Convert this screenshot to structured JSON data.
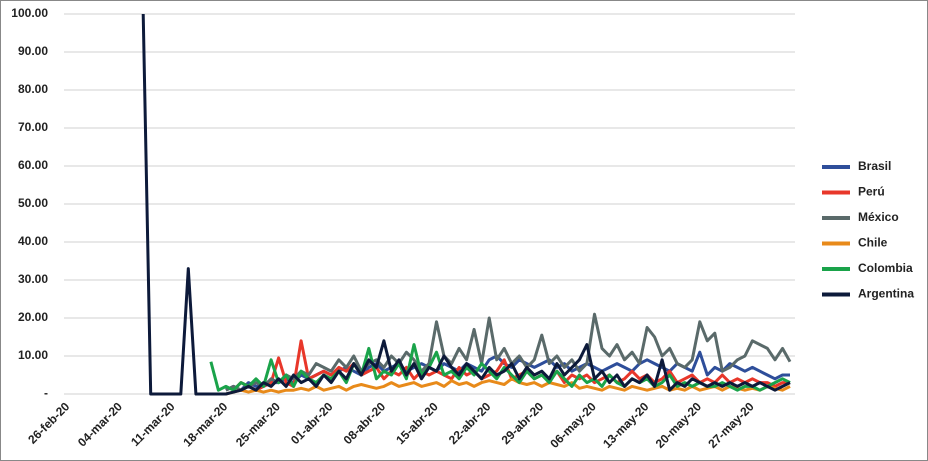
{
  "chart_data": {
    "type": "line",
    "categories": [
      "26-feb-20",
      null,
      null,
      null,
      null,
      null,
      null,
      "04-mar-20",
      null,
      null,
      null,
      null,
      null,
      null,
      "11-mar-20",
      null,
      null,
      null,
      null,
      null,
      null,
      "18-mar-20",
      null,
      null,
      null,
      null,
      null,
      null,
      "25-mar-20",
      null,
      null,
      null,
      null,
      null,
      null,
      "01-abr-20",
      null,
      null,
      null,
      null,
      null,
      null,
      "08-abr-20",
      null,
      null,
      null,
      null,
      null,
      null,
      "15-abr-20",
      null,
      null,
      null,
      null,
      null,
      null,
      "22-abr-20",
      null,
      null,
      null,
      null,
      null,
      null,
      "29-abr-20",
      null,
      null,
      null,
      null,
      null,
      null,
      "06-may-20",
      null,
      null,
      null,
      null,
      null,
      null,
      "13-may-20",
      null,
      null,
      null,
      null,
      null,
      null,
      "20-may-20",
      null,
      null,
      null,
      null,
      null,
      null,
      "27-may-20",
      null,
      null,
      null,
      null,
      null
    ],
    "series": [
      {
        "name": "Brasil",
        "color": "#2e4e9a",
        "values": [
          null,
          null,
          null,
          null,
          null,
          null,
          null,
          null,
          null,
          null,
          null,
          null,
          null,
          null,
          null,
          null,
          null,
          null,
          null,
          null,
          null,
          1,
          2,
          1,
          3,
          2,
          2,
          3,
          3,
          4,
          3,
          5,
          4,
          5,
          6,
          5,
          6,
          7,
          6,
          5,
          7,
          8,
          6,
          7,
          8,
          6,
          7,
          8,
          7,
          6,
          8,
          7,
          6,
          8,
          7,
          6,
          9,
          10,
          8,
          7,
          9,
          8,
          7,
          8,
          9,
          7,
          8,
          6,
          7,
          8,
          7,
          6,
          7,
          8,
          7,
          6,
          8,
          9,
          8,
          7,
          6,
          8,
          7,
          6,
          11,
          5,
          7,
          6,
          8,
          7,
          6,
          7,
          6,
          5,
          4,
          5,
          5
        ]
      },
      {
        "name": "Perú",
        "color": "#e8372a",
        "values": [
          null,
          null,
          null,
          null,
          null,
          null,
          null,
          null,
          null,
          null,
          null,
          null,
          null,
          null,
          null,
          null,
          null,
          null,
          null,
          null,
          null,
          null,
          1,
          3,
          2,
          1,
          2,
          3,
          9.5,
          3,
          2,
          14,
          4,
          5,
          6,
          5,
          7,
          6,
          8,
          5,
          6,
          7,
          4,
          6,
          5,
          7,
          4,
          6,
          5,
          6,
          5,
          4,
          7,
          5,
          6,
          4,
          5,
          6,
          9,
          4,
          5,
          6,
          4,
          5,
          4,
          6,
          3,
          5,
          4,
          5,
          3,
          4,
          5,
          3,
          4,
          6,
          4,
          5,
          3,
          4,
          6,
          3,
          4,
          5,
          3,
          4,
          3,
          5,
          3,
          4,
          3,
          4,
          3,
          3,
          2,
          3,
          3
        ]
      },
      {
        "name": "México",
        "color": "#5a6a6a",
        "values": [
          null,
          null,
          null,
          null,
          null,
          null,
          null,
          null,
          null,
          null,
          null,
          null,
          null,
          null,
          null,
          null,
          null,
          null,
          null,
          null,
          null,
          1,
          2,
          1,
          2,
          3,
          2,
          4,
          3,
          5,
          4,
          6,
          5,
          8,
          7,
          6,
          9,
          7,
          10,
          6,
          8,
          9,
          7,
          10,
          8,
          11,
          9,
          6,
          8,
          19,
          10,
          8,
          12,
          9,
          17,
          8,
          20,
          9,
          12,
          8,
          10,
          7,
          9,
          15.5,
          8,
          10,
          7,
          9,
          6,
          8,
          21,
          12,
          10,
          13,
          9,
          11,
          8,
          17.5,
          15,
          10,
          12,
          8,
          7,
          9,
          19,
          14,
          16,
          6,
          7,
          9,
          10,
          14,
          13,
          12,
          9,
          12,
          8.5
        ]
      },
      {
        "name": "Chile",
        "color": "#e88a1a",
        "values": [
          null,
          null,
          null,
          null,
          null,
          null,
          null,
          null,
          null,
          null,
          null,
          null,
          null,
          null,
          null,
          null,
          null,
          null,
          null,
          null,
          null,
          0,
          0.5,
          1,
          0.5,
          1,
          0.5,
          1,
          0.5,
          1,
          1,
          1.5,
          1,
          2,
          1,
          1.5,
          2,
          1,
          2,
          2.5,
          2,
          1.5,
          2,
          3,
          2,
          2.5,
          3,
          2,
          2.5,
          3,
          2,
          3.5,
          2.5,
          3,
          2,
          3,
          3.5,
          3,
          2.5,
          4,
          3,
          2.5,
          3,
          2,
          3,
          2.5,
          2,
          3,
          1.5,
          2,
          1.5,
          1,
          2,
          1.5,
          1,
          2,
          1.5,
          1,
          1.5,
          2,
          1,
          1.5,
          1,
          2,
          1,
          1.5,
          2,
          1,
          2,
          1.5,
          1,
          1.5,
          1,
          2,
          1.5,
          1,
          2
        ]
      },
      {
        "name": "Colombia",
        "color": "#1aa34a",
        "values": [
          null,
          null,
          null,
          null,
          null,
          null,
          null,
          null,
          null,
          null,
          null,
          null,
          null,
          null,
          null,
          null,
          null,
          null,
          null,
          8.5,
          1,
          2,
          1,
          3,
          2,
          4,
          2,
          9,
          3,
          5,
          2,
          6,
          4,
          3,
          5,
          4,
          6,
          3,
          8,
          5,
          12,
          4,
          6,
          5,
          8,
          4,
          13,
          5,
          7,
          11,
          5,
          6,
          4,
          7,
          5,
          8,
          6,
          4,
          7,
          5,
          3,
          6,
          4,
          5,
          3,
          6,
          4,
          2,
          5,
          3,
          4,
          2,
          5,
          3,
          2,
          4,
          3,
          4,
          2,
          3,
          5,
          2,
          3,
          2,
          3,
          2,
          2,
          3,
          2,
          1,
          2,
          2,
          1,
          2,
          3,
          4,
          3
        ]
      },
      {
        "name": "Argentina",
        "color": "#0d1a3a",
        "values": [
          null,
          null,
          null,
          null,
          null,
          null,
          null,
          null,
          null,
          null,
          100,
          0,
          0,
          0,
          0,
          0,
          33,
          0,
          0,
          0,
          0,
          0,
          0.5,
          1,
          2,
          1,
          3,
          2,
          4,
          2,
          5,
          3,
          4,
          2,
          5,
          3,
          6,
          4,
          8,
          5,
          9,
          7,
          14,
          6,
          9,
          5,
          8,
          4,
          7,
          6,
          10,
          7,
          5,
          8,
          6,
          4,
          7,
          5,
          6,
          8,
          4,
          7,
          5,
          6,
          4,
          8,
          5,
          7,
          9,
          13,
          4,
          6,
          3,
          5,
          2,
          4,
          3,
          5,
          2,
          9,
          1,
          3,
          2,
          4,
          3,
          2,
          3,
          2,
          3,
          2,
          3,
          2,
          3,
          2,
          1,
          2,
          3
        ]
      }
    ],
    "ylim": [
      0,
      100
    ],
    "yticks": [
      {
        "value": 0,
        "label": "-"
      },
      {
        "value": 10,
        "label": "10.00"
      },
      {
        "value": 20,
        "label": "20.00"
      },
      {
        "value": 30,
        "label": "30.00"
      },
      {
        "value": 40,
        "label": "40.00"
      },
      {
        "value": 50,
        "label": "50.00"
      },
      {
        "value": 60,
        "label": "60.00"
      },
      {
        "value": 70,
        "label": "70.00"
      },
      {
        "value": 80,
        "label": "80.00"
      },
      {
        "value": 90,
        "label": "90.00"
      },
      {
        "value": 100,
        "label": "100.00"
      }
    ],
    "grid": true,
    "legend": "right"
  }
}
